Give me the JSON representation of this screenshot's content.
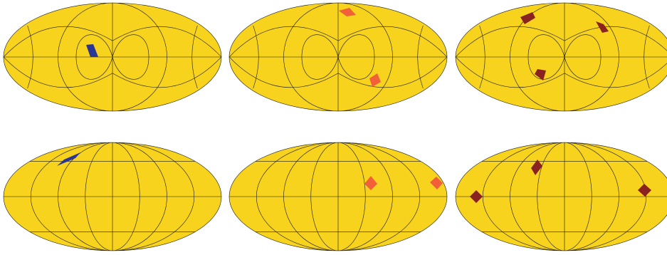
{
  "figure": {
    "background_color": "#ffffff",
    "sphere_fill": "#f7d31d",
    "graticule_color": "#1a1a1a",
    "panels": [
      {
        "id": "top-left",
        "projection": "mollweide",
        "graticule": "rotated",
        "pixel_highlights": [
          {
            "color": "#2c3694",
            "label": "blue"
          }
        ]
      },
      {
        "id": "top-middle",
        "projection": "mollweide",
        "graticule": "rotated",
        "pixel_highlights": [
          {
            "color": "#f2603a",
            "label": "orange"
          },
          {
            "color": "#f2603a",
            "label": "orange"
          }
        ]
      },
      {
        "id": "top-right",
        "projection": "mollweide",
        "graticule": "rotated",
        "pixel_highlights": [
          {
            "color": "#8a2320",
            "label": "dark-red"
          },
          {
            "color": "#8a2320",
            "label": "dark-red"
          },
          {
            "color": "#8a2320",
            "label": "dark-red"
          }
        ]
      },
      {
        "id": "bottom-left",
        "projection": "mollweide",
        "graticule": "standard",
        "pixel_highlights": [
          {
            "color": "#2c3694",
            "label": "blue"
          }
        ]
      },
      {
        "id": "bottom-middle",
        "projection": "mollweide",
        "graticule": "standard",
        "pixel_highlights": [
          {
            "color": "#f2603a",
            "label": "orange"
          },
          {
            "color": "#f2603a",
            "label": "orange"
          }
        ]
      },
      {
        "id": "bottom-right",
        "projection": "mollweide",
        "graticule": "standard",
        "pixel_highlights": [
          {
            "color": "#8a2320",
            "label": "dark-red"
          },
          {
            "color": "#8a2320",
            "label": "dark-red"
          },
          {
            "color": "#8a2320",
            "label": "dark-red"
          }
        ]
      }
    ]
  }
}
